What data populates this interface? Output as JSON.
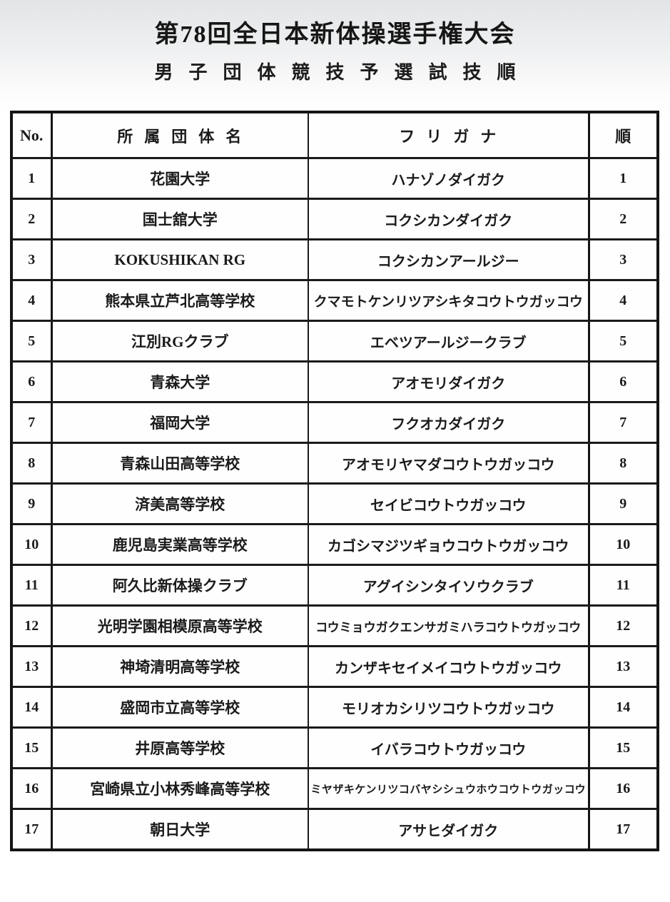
{
  "page": {
    "title": "第78回全日本新体操選手権大会",
    "subtitle": "男子団体競技予選試技順"
  },
  "table": {
    "headers": {
      "no": "No.",
      "team": "所属団体名",
      "furigana": "フリガナ",
      "order": "順"
    },
    "rows": [
      {
        "no": "1",
        "team": "花園大学",
        "furigana": "ハナゾノダイガク",
        "order": "1"
      },
      {
        "no": "2",
        "team": "国士舘大学",
        "furigana": "コクシカンダイガク",
        "order": "2"
      },
      {
        "no": "3",
        "team": "KOKUSHIKAN RG",
        "furigana": "コクシカンアールジー",
        "order": "3"
      },
      {
        "no": "4",
        "team": "熊本県立芦北高等学校",
        "furigana": "クマモトケンリツアシキタコウトウガッコウ",
        "order": "4"
      },
      {
        "no": "5",
        "team": "江別RGクラブ",
        "furigana": "エベツアールジークラブ",
        "order": "5"
      },
      {
        "no": "6",
        "team": "青森大学",
        "furigana": "アオモリダイガク",
        "order": "6"
      },
      {
        "no": "7",
        "team": "福岡大学",
        "furigana": "フクオカダイガク",
        "order": "7"
      },
      {
        "no": "8",
        "team": "青森山田高等学校",
        "furigana": "アオモリヤマダコウトウガッコウ",
        "order": "8"
      },
      {
        "no": "9",
        "team": "済美高等学校",
        "furigana": "セイビコウトウガッコウ",
        "order": "9"
      },
      {
        "no": "10",
        "team": "鹿児島実業高等学校",
        "furigana": "カゴシマジツギョウコウトウガッコウ",
        "order": "10"
      },
      {
        "no": "11",
        "team": "阿久比新体操クラブ",
        "furigana": "アグイシンタイソウクラブ",
        "order": "11"
      },
      {
        "no": "12",
        "team": "光明学園相模原高等学校",
        "furigana": "コウミョウガクエンサガミハラコウトウガッコウ",
        "order": "12"
      },
      {
        "no": "13",
        "team": "神埼清明高等学校",
        "furigana": "カンザキセイメイコウトウガッコウ",
        "order": "13"
      },
      {
        "no": "14",
        "team": "盛岡市立高等学校",
        "furigana": "モリオカシリツコウトウガッコウ",
        "order": "14"
      },
      {
        "no": "15",
        "team": "井原高等学校",
        "furigana": "イバラコウトウガッコウ",
        "order": "15"
      },
      {
        "no": "16",
        "team": "宮崎県立小林秀峰高等学校",
        "furigana": "ミヤザキケンリツコバヤシシュウホウコウトウガッコウ",
        "order": "16"
      },
      {
        "no": "17",
        "team": "朝日大学",
        "furigana": "アサヒダイガク",
        "order": "17"
      }
    ]
  }
}
